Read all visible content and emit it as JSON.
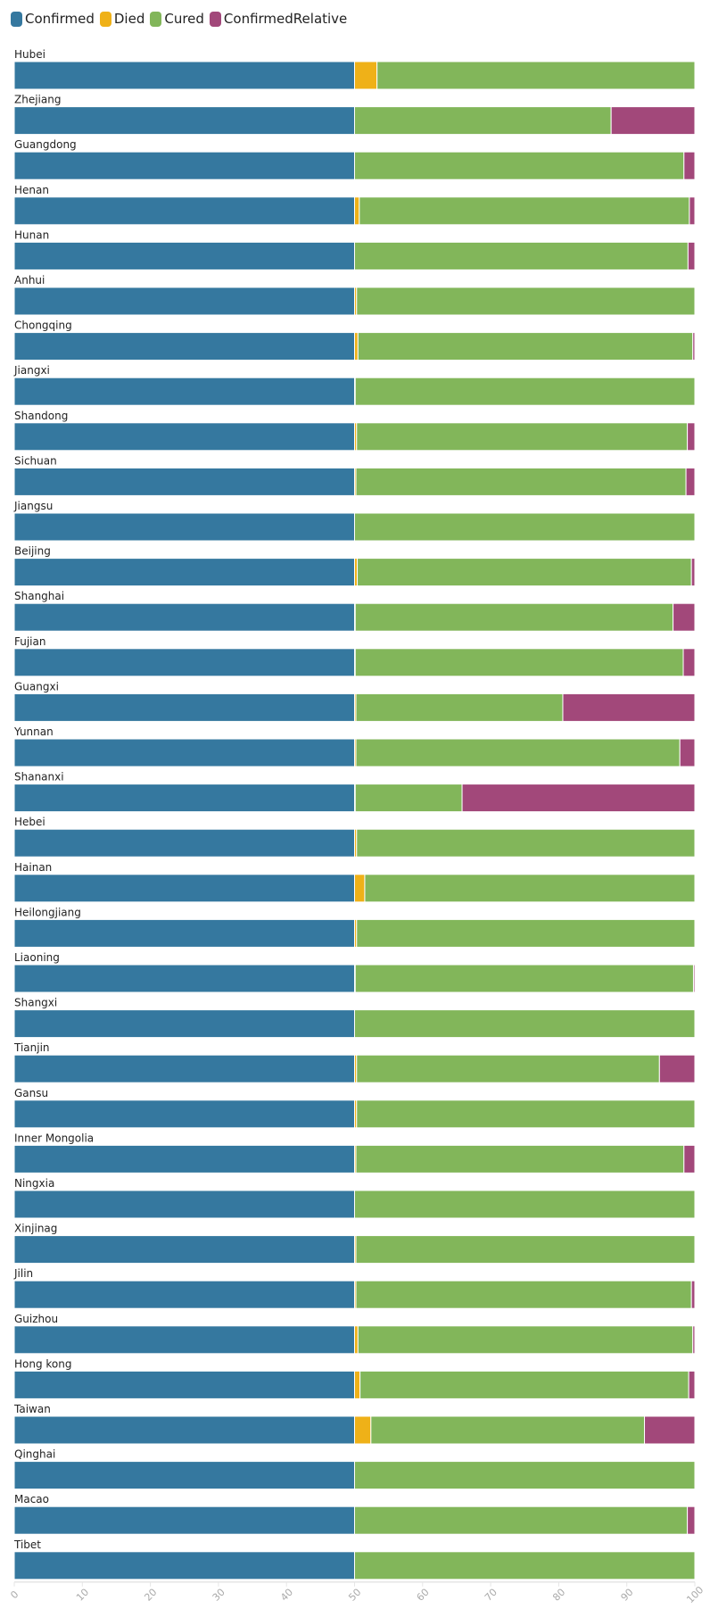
{
  "chart_data": {
    "type": "bar",
    "orientation": "horizontal",
    "stacked": true,
    "title": "",
    "xlabel": "",
    "ylabel": "",
    "xlim": [
      0,
      100
    ],
    "xticks": [
      "0",
      "10",
      "20",
      "30",
      "40",
      "50",
      "60",
      "70",
      "80",
      "90",
      "100"
    ],
    "legend": "top-left",
    "categories": [
      "Hubei",
      "Zhejiang",
      "Guangdong",
      "Henan",
      "Hunan",
      "Anhui",
      "Chongqing",
      "Jiangxi",
      "Shandong",
      "Sichuan",
      "Jiangsu",
      "Beijing",
      "Shanghai",
      "Fujian",
      "Guangxi",
      "Yunnan",
      "Shananxi",
      "Hebei",
      "Hainan",
      "Heilongjiang",
      "Liaoning",
      "Shangxi",
      "Tianjin",
      "Gansu",
      "Inner Mongolia",
      "Ningxia",
      "Xinjinag",
      "Jilin",
      "Guizhou",
      "Hong kong",
      "Taiwan",
      "Qinghai",
      "Macao",
      "Tibet"
    ],
    "series": [
      {
        "name": "Confirmed",
        "color": "#35789f",
        "values": [
          50,
          50,
          50,
          50,
          50,
          50,
          50,
          50,
          50,
          50,
          50,
          50,
          50,
          50,
          50,
          50,
          50,
          50,
          50,
          50,
          50,
          50,
          50,
          50,
          50,
          50,
          50,
          50,
          50,
          50,
          50,
          50,
          50,
          50
        ]
      },
      {
        "name": "Died",
        "color": "#efb118",
        "values": [
          3.3,
          0,
          0,
          0.7,
          0,
          0.3,
          0.5,
          0.1,
          0.3,
          0.2,
          0,
          0.4,
          0.1,
          0.1,
          0.2,
          0.2,
          0.1,
          0.3,
          1.5,
          0.3,
          0.1,
          0,
          0.3,
          0.3,
          0.2,
          0,
          0.2,
          0.2,
          0.5,
          0.8,
          2.4,
          0,
          0,
          0
        ]
      },
      {
        "name": "Cured",
        "color": "#82b65a",
        "values": [
          46.7,
          37.7,
          48.4,
          48.5,
          49.0,
          49.7,
          49.2,
          49.9,
          48.6,
          48.5,
          50,
          49.1,
          46.7,
          48.2,
          30.4,
          47.6,
          15.7,
          49.7,
          48.5,
          49.7,
          49.7,
          50,
          44.5,
          49.7,
          48.2,
          50,
          49.8,
          49.3,
          49.2,
          48.3,
          40.2,
          50,
          48.9,
          50
        ]
      },
      {
        "name": "ConfirmedRelative",
        "color": "#a2487a",
        "values": [
          0,
          12.3,
          1.6,
          0.8,
          1.0,
          0,
          0.3,
          0,
          1.1,
          1.3,
          0,
          0.5,
          3.2,
          1.7,
          19.4,
          2.2,
          34.2,
          0,
          0,
          0,
          0.2,
          0,
          5.2,
          0,
          1.6,
          0,
          0,
          0.5,
          0.3,
          0.9,
          7.4,
          0,
          1.1,
          0
        ]
      }
    ]
  }
}
